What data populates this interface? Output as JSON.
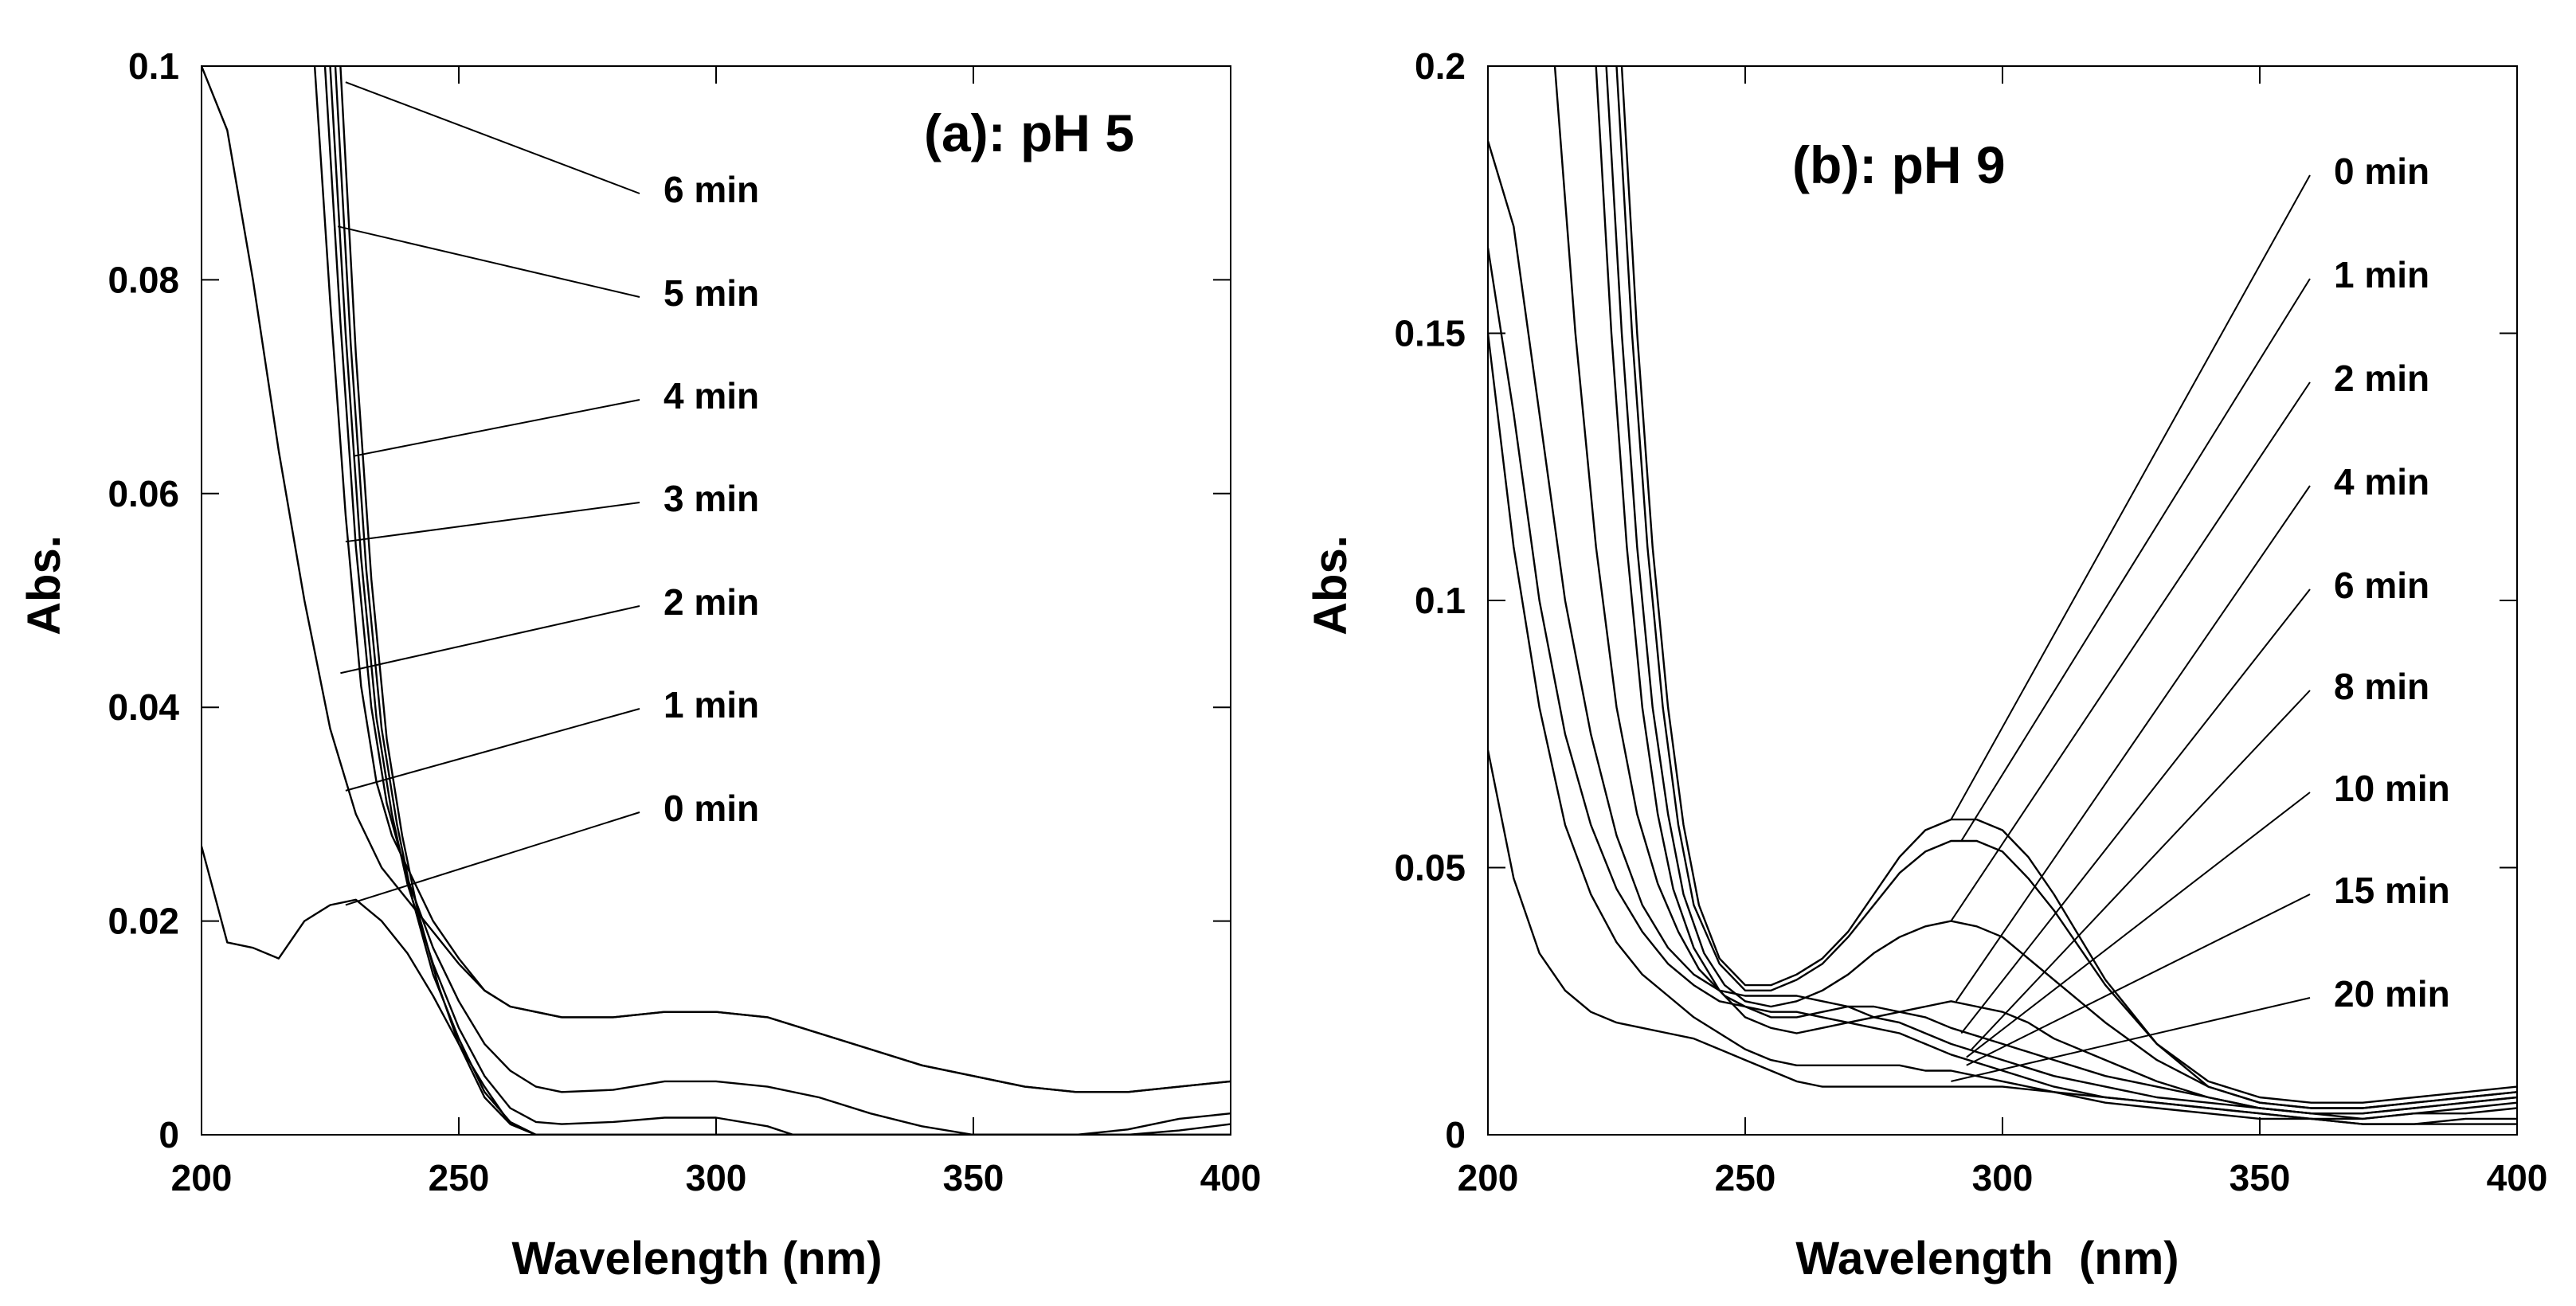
{
  "chart_data": [
    {
      "id": "a",
      "type": "line",
      "title": "(a): pH 5",
      "xlabel": "Wavelength (nm)",
      "ylabel": "Abs.",
      "xlim": [
        200,
        400
      ],
      "ylim": [
        0,
        0.1
      ],
      "xticks": [
        "200",
        "250",
        "300",
        "350",
        "400"
      ],
      "yticks": [
        "0",
        "0.02",
        "0.04",
        "0.06",
        "0.08",
        "0.1"
      ],
      "xtick_values": [
        200,
        250,
        300,
        350,
        400
      ],
      "ytick_values": [
        0,
        0.02,
        0.04,
        0.06,
        0.08,
        0.1
      ],
      "series": [
        {
          "name": "0 min",
          "x": [
            200,
            205,
            210,
            215,
            220,
            225,
            230,
            235,
            240,
            245,
            250,
            255,
            260,
            265,
            270,
            280,
            300,
            320,
            340,
            360,
            380,
            400
          ],
          "y": [
            0.027,
            0.018,
            0.0175,
            0.0165,
            0.02,
            0.0215,
            0.022,
            0.02,
            0.017,
            0.013,
            0.0085,
            0.0045,
            0.001,
            0,
            0,
            0,
            0,
            0,
            0,
            0,
            0,
            0
          ]
        },
        {
          "name": "1 min",
          "x": [
            200,
            205,
            210,
            215,
            220,
            225,
            230,
            235,
            240,
            245,
            250,
            255,
            260,
            270,
            280,
            290,
            300,
            310,
            320,
            330,
            340,
            350,
            360,
            370,
            380,
            390,
            400
          ],
          "y": [
            0.1,
            0.094,
            0.08,
            0.064,
            0.05,
            0.038,
            0.03,
            0.025,
            0.022,
            0.019,
            0.016,
            0.0135,
            0.012,
            0.011,
            0.011,
            0.0115,
            0.0115,
            0.011,
            0.0095,
            0.008,
            0.0065,
            0.0055,
            0.0045,
            0.004,
            0.004,
            0.0045,
            0.005
          ]
        },
        {
          "name": "2 min",
          "x": [
            222,
            225,
            228,
            231,
            234,
            237,
            240,
            245,
            250,
            255,
            260,
            270,
            280,
            290,
            300,
            310,
            320,
            330,
            340,
            350,
            360,
            370,
            380,
            390,
            400
          ],
          "y": [
            0.1,
            0.078,
            0.058,
            0.042,
            0.033,
            0.028,
            0.025,
            0.02,
            0.0165,
            0.0135,
            0.012,
            0.011,
            0.011,
            0.0115,
            0.0115,
            0.011,
            0.0095,
            0.008,
            0.0065,
            0.0055,
            0.0045,
            0.004,
            0.004,
            0.0045,
            0.005
          ]
        },
        {
          "name": "3 min",
          "x": [
            224,
            227,
            230,
            233,
            236,
            240,
            245,
            250,
            255,
            260,
            265,
            270,
            280,
            290,
            300,
            310,
            320,
            330,
            340,
            350,
            360,
            370,
            380,
            390,
            400
          ],
          "y": [
            0.1,
            0.076,
            0.055,
            0.04,
            0.031,
            0.024,
            0.0175,
            0.0125,
            0.0085,
            0.006,
            0.0045,
            0.004,
            0.0042,
            0.005,
            0.005,
            0.0045,
            0.0035,
            0.002,
            0.0008,
            0,
            0,
            0,
            0.0005,
            0.0015,
            0.002
          ]
        },
        {
          "name": "4 min",
          "x": [
            225,
            228,
            231,
            234,
            237,
            240,
            245,
            250,
            255,
            260,
            265,
            270,
            280,
            290,
            300,
            310,
            315,
            320,
            330,
            340,
            350,
            360,
            370,
            380,
            390,
            400
          ],
          "y": [
            0.1,
            0.075,
            0.054,
            0.039,
            0.03,
            0.0235,
            0.016,
            0.01,
            0.0055,
            0.0025,
            0.0012,
            0.001,
            0.0012,
            0.0016,
            0.0016,
            0.0008,
            0,
            0,
            0,
            0,
            0,
            0,
            0,
            0,
            0.0004,
            0.001
          ]
        },
        {
          "name": "5 min",
          "x": [
            226,
            229,
            232,
            235,
            238,
            241,
            245,
            250,
            255,
            260,
            265,
            270,
            280,
            300,
            400
          ],
          "y": [
            0.1,
            0.074,
            0.053,
            0.038,
            0.029,
            0.022,
            0.015,
            0.009,
            0.004,
            0.0012,
            0,
            0,
            0,
            0,
            0
          ]
        },
        {
          "name": "6 min",
          "x": [
            227,
            230,
            233,
            236,
            239,
            242,
            246,
            250,
            255,
            260,
            265,
            270,
            280,
            300,
            400
          ],
          "y": [
            0.1,
            0.073,
            0.052,
            0.037,
            0.028,
            0.021,
            0.014,
            0.0085,
            0.0035,
            0.001,
            0,
            0,
            0,
            0,
            0
          ]
        }
      ],
      "annotations": [
        {
          "label": "6 min",
          "point_x": 228,
          "point_y": 0.0985
        },
        {
          "label": "5 min",
          "point_x": 226.5,
          "point_y": 0.085
        },
        {
          "label": "4 min",
          "point_x": 229.5,
          "point_y": 0.0635
        },
        {
          "label": "3 min",
          "point_x": 228,
          "point_y": 0.0555
        },
        {
          "label": "2 min",
          "point_x": 227,
          "point_y": 0.0432
        },
        {
          "label": "1 min",
          "point_x": 228,
          "point_y": 0.0322
        },
        {
          "label": "0 min",
          "point_x": 228,
          "point_y": 0.0215
        }
      ]
    },
    {
      "id": "b",
      "type": "line",
      "title": "(b): pH 9",
      "xlabel": "Wavelength  (nm)",
      "ylabel": "Abs.",
      "xlim": [
        200,
        400
      ],
      "ylim": [
        0,
        0.2
      ],
      "xticks": [
        "200",
        "250",
        "300",
        "350",
        "400"
      ],
      "yticks": [
        "0",
        "0.05",
        "0.1",
        "0.15",
        "0.2"
      ],
      "xtick_values": [
        200,
        250,
        300,
        350,
        400
      ],
      "ytick_values": [
        0,
        0.05,
        0.1,
        0.15,
        0.2
      ],
      "series": [
        {
          "name": "0 min",
          "x": [
            226,
            229,
            232,
            235,
            238,
            241,
            245,
            250,
            255,
            260,
            265,
            270,
            275,
            280,
            285,
            290,
            295,
            300,
            305,
            310,
            315,
            320,
            330,
            340,
            350,
            360,
            370,
            380,
            390,
            400
          ],
          "y": [
            0.2,
            0.15,
            0.11,
            0.08,
            0.058,
            0.043,
            0.033,
            0.028,
            0.028,
            0.03,
            0.033,
            0.038,
            0.045,
            0.052,
            0.057,
            0.059,
            0.059,
            0.057,
            0.052,
            0.045,
            0.037,
            0.029,
            0.017,
            0.009,
            0.006,
            0.005,
            0.005,
            0.006,
            0.007,
            0.008
          ]
        },
        {
          "name": "1 min",
          "x": [
            225,
            228,
            231,
            234,
            237,
            240,
            245,
            250,
            255,
            260,
            265,
            270,
            275,
            280,
            285,
            290,
            295,
            300,
            305,
            310,
            315,
            320,
            330,
            340,
            350,
            360,
            370,
            380,
            390,
            400
          ],
          "y": [
            0.2,
            0.15,
            0.11,
            0.08,
            0.058,
            0.043,
            0.032,
            0.027,
            0.027,
            0.029,
            0.032,
            0.037,
            0.043,
            0.049,
            0.053,
            0.055,
            0.055,
            0.053,
            0.048,
            0.042,
            0.035,
            0.028,
            0.017,
            0.01,
            0.007,
            0.006,
            0.006,
            0.007,
            0.008,
            0.009
          ]
        },
        {
          "name": "2 min",
          "x": [
            223,
            226,
            229,
            232,
            235,
            238,
            242,
            246,
            250,
            255,
            260,
            265,
            270,
            275,
            280,
            285,
            290,
            295,
            300,
            305,
            310,
            320,
            330,
            340,
            350,
            360,
            370,
            380,
            390,
            400
          ],
          "y": [
            0.2,
            0.15,
            0.11,
            0.08,
            0.06,
            0.045,
            0.034,
            0.028,
            0.025,
            0.024,
            0.025,
            0.027,
            0.03,
            0.034,
            0.037,
            0.039,
            0.04,
            0.039,
            0.037,
            0.033,
            0.029,
            0.021,
            0.014,
            0.009,
            0.006,
            0.005,
            0.005,
            0.006,
            0.007,
            0.008
          ]
        },
        {
          "name": "4 min",
          "x": [
            221,
            224,
            227,
            230,
            233,
            236,
            240,
            245,
            250,
            255,
            260,
            265,
            270,
            275,
            280,
            285,
            290,
            295,
            300,
            305,
            310,
            320,
            330,
            340,
            350,
            360,
            370,
            380,
            390,
            400
          ],
          "y": [
            0.2,
            0.15,
            0.11,
            0.08,
            0.06,
            0.046,
            0.035,
            0.027,
            0.022,
            0.02,
            0.019,
            0.02,
            0.021,
            0.022,
            0.023,
            0.024,
            0.025,
            0.024,
            0.023,
            0.021,
            0.018,
            0.014,
            0.01,
            0.007,
            0.005,
            0.004,
            0.004,
            0.005,
            0.006,
            0.007
          ]
        },
        {
          "name": "6 min",
          "x": [
            213,
            217,
            221,
            225,
            229,
            233,
            237,
            241,
            246,
            250,
            255,
            260,
            265,
            270,
            275,
            280,
            285,
            290,
            300,
            310,
            320,
            330,
            340,
            350,
            360,
            370,
            380,
            390,
            400
          ],
          "y": [
            0.2,
            0.15,
            0.11,
            0.08,
            0.06,
            0.047,
            0.038,
            0.031,
            0.026,
            0.024,
            0.022,
            0.022,
            0.023,
            0.024,
            0.024,
            0.023,
            0.022,
            0.02,
            0.017,
            0.014,
            0.011,
            0.009,
            0.007,
            0.005,
            0.004,
            0.004,
            0.005,
            0.006,
            0.007
          ]
        },
        {
          "name": "8 min",
          "x": [
            200,
            205,
            210,
            215,
            220,
            225,
            230,
            235,
            240,
            245,
            250,
            255,
            260,
            265,
            270,
            275,
            280,
            285,
            290,
            300,
            310,
            320,
            330,
            340,
            350,
            360,
            370,
            380,
            390,
            400
          ],
          "y": [
            0.186,
            0.17,
            0.135,
            0.1,
            0.075,
            0.056,
            0.043,
            0.035,
            0.03,
            0.027,
            0.026,
            0.026,
            0.026,
            0.025,
            0.024,
            0.022,
            0.021,
            0.019,
            0.017,
            0.014,
            0.011,
            0.009,
            0.007,
            0.006,
            0.005,
            0.004,
            0.003,
            0.004,
            0.005,
            0.006
          ]
        },
        {
          "name": "10 min",
          "x": [
            200,
            205,
            210,
            215,
            220,
            225,
            230,
            235,
            240,
            245,
            250,
            255,
            260,
            265,
            270,
            275,
            280,
            285,
            290,
            300,
            310,
            320,
            330,
            340,
            350,
            360,
            370,
            380,
            390,
            400
          ],
          "y": [
            0.166,
            0.135,
            0.1,
            0.075,
            0.058,
            0.046,
            0.038,
            0.032,
            0.028,
            0.025,
            0.024,
            0.023,
            0.023,
            0.022,
            0.021,
            0.02,
            0.019,
            0.017,
            0.015,
            0.012,
            0.009,
            0.007,
            0.006,
            0.005,
            0.004,
            0.003,
            0.003,
            0.004,
            0.004,
            0.005
          ]
        },
        {
          "name": "15 min",
          "x": [
            200,
            205,
            210,
            215,
            220,
            225,
            230,
            235,
            240,
            245,
            250,
            255,
            260,
            265,
            270,
            275,
            280,
            285,
            290,
            300,
            310,
            320,
            330,
            340,
            350,
            360,
            370,
            380,
            390,
            400
          ],
          "y": [
            0.15,
            0.11,
            0.08,
            0.058,
            0.045,
            0.036,
            0.03,
            0.026,
            0.022,
            0.019,
            0.016,
            0.014,
            0.013,
            0.013,
            0.013,
            0.013,
            0.013,
            0.012,
            0.012,
            0.01,
            0.008,
            0.006,
            0.005,
            0.004,
            0.003,
            0.003,
            0.002,
            0.002,
            0.003,
            0.003
          ]
        },
        {
          "name": "20 min",
          "x": [
            200,
            205,
            210,
            215,
            220,
            225,
            230,
            235,
            240,
            245,
            250,
            255,
            260,
            265,
            270,
            275,
            280,
            285,
            290,
            300,
            310,
            320,
            330,
            340,
            350,
            360,
            370,
            380,
            390,
            400
          ],
          "y": [
            0.072,
            0.048,
            0.034,
            0.027,
            0.023,
            0.021,
            0.02,
            0.019,
            0.018,
            0.016,
            0.014,
            0.012,
            0.01,
            0.009,
            0.009,
            0.009,
            0.009,
            0.009,
            0.009,
            0.009,
            0.008,
            0.007,
            0.006,
            0.005,
            0.004,
            0.003,
            0.002,
            0.002,
            0.002,
            0.002
          ]
        }
      ],
      "annotations": [
        {
          "label": "0 min",
          "point_x": 290,
          "point_y": 0.059
        },
        {
          "label": "1 min",
          "point_x": 292,
          "point_y": 0.055
        },
        {
          "label": "2 min",
          "point_x": 290,
          "point_y": 0.04
        },
        {
          "label": "4 min",
          "point_x": 291,
          "point_y": 0.025
        },
        {
          "label": "6 min",
          "point_x": 292,
          "point_y": 0.019
        },
        {
          "label": "8 min",
          "point_x": 294,
          "point_y": 0.016
        },
        {
          "label": "10 min",
          "point_x": 293,
          "point_y": 0.0145
        },
        {
          "label": "15 min",
          "point_x": 293,
          "point_y": 0.013
        },
        {
          "label": "20 min",
          "point_x": 290,
          "point_y": 0.01
        }
      ]
    }
  ]
}
